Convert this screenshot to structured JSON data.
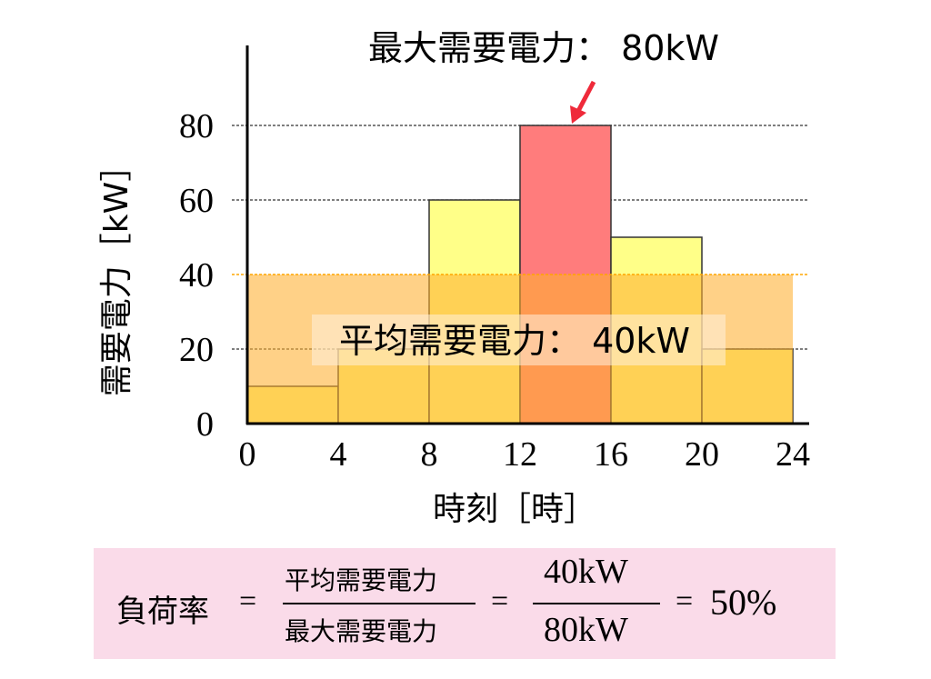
{
  "chart_data": {
    "type": "bar",
    "title": "",
    "xlabel": "時刻［時］",
    "ylabel": "需要電力［kW］",
    "x_ticks": [
      "0",
      "4",
      "8",
      "12",
      "16",
      "20",
      "24"
    ],
    "y_ticks": [
      "0",
      "20",
      "40",
      "60",
      "80"
    ],
    "xlim": [
      0,
      24
    ],
    "ylim": [
      0,
      80
    ],
    "bins": [
      {
        "start": 0,
        "end": 4,
        "value": 10
      },
      {
        "start": 4,
        "end": 8,
        "value": 20
      },
      {
        "start": 8,
        "end": 12,
        "value": 60
      },
      {
        "start": 12,
        "end": 16,
        "value": 80
      },
      {
        "start": 16,
        "end": 20,
        "value": 50
      },
      {
        "start": 20,
        "end": 24,
        "value": 20
      }
    ],
    "average_value": 40,
    "max_value": 80,
    "annotations": {
      "max_label": "最大需要電力： 80kW",
      "avg_label": "平均需要電力： 40kW"
    },
    "colors": {
      "bar": "#ffff88",
      "max_bar": "#ff7c7c",
      "average_band": "#ffb030",
      "average_line": "#ffa500",
      "max_text": "#ef4e4e",
      "avg_text": "#ff8c00",
      "arrow": "#ef2a3a"
    },
    "grid": "dashed horizontal at 40, 60, 80"
  },
  "formula": {
    "lhs": "負荷率",
    "eq": "=",
    "numerator_text": "平均需要電力",
    "denominator_text": "最大需要電力",
    "numerator_value": "40kW",
    "denominator_value": "80kW",
    "result": "50%",
    "background": "#fadbe9"
  }
}
